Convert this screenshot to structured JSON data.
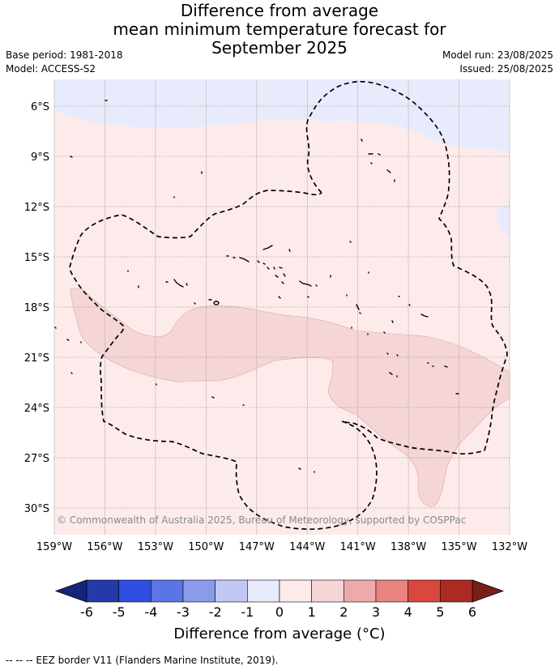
{
  "title": {
    "line1": "Difference from average",
    "line2": "mean minimum temperature forecast for",
    "line3": "September 2025"
  },
  "meta_left": {
    "base_period": "Base period: 1981-2018",
    "model": "Model: ACCESS-S2"
  },
  "meta_right": {
    "model_run": "Model run: 23/08/2025",
    "issued": "Issued: 25/08/2025"
  },
  "map": {
    "lon_labels": [
      "159°W",
      "156°W",
      "153°W",
      "150°W",
      "147°W",
      "144°W",
      "141°W",
      "138°W",
      "135°W",
      "132°W"
    ],
    "lat_labels": [
      "6°S",
      "9°S",
      "12°S",
      "15°S",
      "18°S",
      "21°S",
      "24°S",
      "27°S",
      "30°S"
    ],
    "lon_range": [
      -159,
      -132
    ],
    "lat_range": [
      -4.4,
      -31.5
    ],
    "copyright": "© Commonwealth of Australia 2025, Bureau of Meteorology, supported by COSPPac",
    "fill_colors": {
      "minus1_0": "#e8ebfb",
      "0_1": "#fcebea",
      "1_2": "#f5d5d5"
    },
    "eez_border": "dashed"
  },
  "colorbar": {
    "ticks": [
      "-6",
      "-5",
      "-4",
      "-3",
      "-2",
      "-1",
      "0",
      "1",
      "2",
      "3",
      "4",
      "5",
      "6"
    ],
    "colors": [
      "#233aa8",
      "#2e4fe2",
      "#5b74e6",
      "#8a9bec",
      "#c2c8f4",
      "#e8ebfb",
      "#fcebea",
      "#f5d5d5",
      "#eeaaaa",
      "#e8837d",
      "#d9473f",
      "#ac2a22"
    ],
    "under_color": "#13267a",
    "over_color": "#7a1e1a",
    "label": "Difference from average (°C)"
  },
  "footnote": "-- -- -- EEZ border V11 (Flanders Marine Institute, 2019)."
}
